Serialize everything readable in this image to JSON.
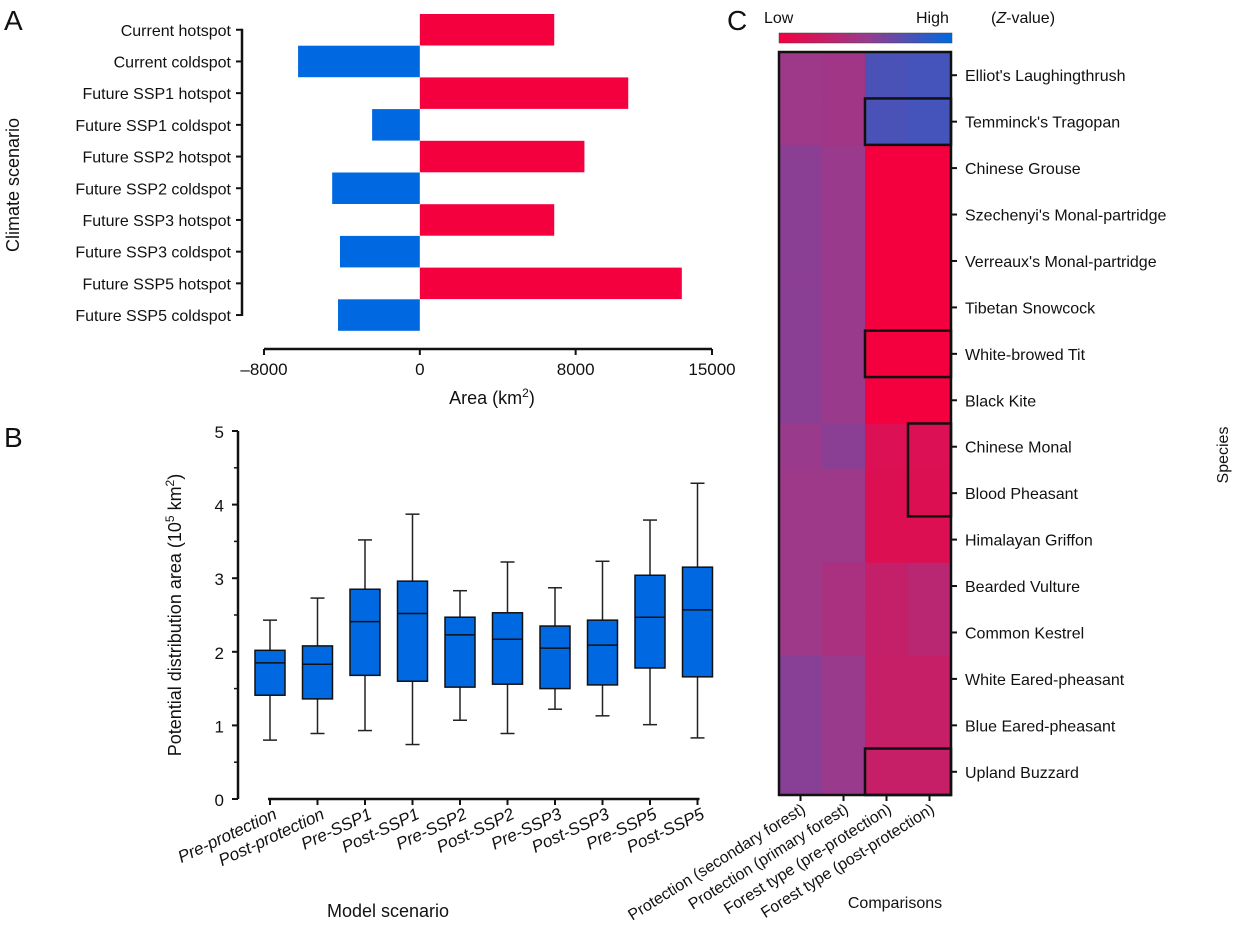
{
  "panels": {
    "a": "A",
    "b": "B",
    "c": "C"
  },
  "colors": {
    "hotspot": "#f5003f",
    "coldspot": "#0068e0",
    "box": "#0068e0",
    "low": "#f5003f",
    "mid": "#9a3a8c",
    "high": "#0068e0"
  },
  "chart_data": [
    {
      "type": "bar",
      "orientation": "horizontal",
      "panel": "A",
      "title": "",
      "xlabel": "Area (km²)",
      "xlabel_main": "Area (km",
      "xlabel_sup": "2",
      "xlabel_tail": ")",
      "ylabel": "Climate scenario",
      "xlim": [
        -8000,
        15000
      ],
      "xticks": [
        -8000,
        0,
        8000,
        15000
      ],
      "xtick_labels": [
        "–8000",
        "0",
        "8000",
        "15000"
      ],
      "categories": [
        "Current hotspot",
        "Current coldspot",
        "Future SSP1 hotspot",
        "Future SSP1 coldspot",
        "Future SSP2 hotspot",
        "Future SSP2 coldspot",
        "Future SSP3 hotspot",
        "Future SSP3 coldspot",
        "Future SSP5 hotspot",
        "Future SSP5 coldspot"
      ],
      "values": [
        6900,
        -6250,
        10700,
        -2450,
        8450,
        -4500,
        6900,
        -4100,
        13450,
        -4200
      ],
      "kinds": [
        "hotspot",
        "coldspot",
        "hotspot",
        "coldspot",
        "hotspot",
        "coldspot",
        "hotspot",
        "coldspot",
        "hotspot",
        "coldspot"
      ],
      "grid": false,
      "legend": "none"
    },
    {
      "type": "box",
      "panel": "B",
      "title": "",
      "xlabel": "Model scenario",
      "ylabel_main": "Potential distribution area (10",
      "ylabel_sup": "5",
      "ylabel_tail": " km",
      "ylabel_sup2": "2",
      "ylabel_end": ")",
      "ylim": [
        0,
        5
      ],
      "yticks": [
        0,
        1,
        2,
        3,
        4,
        5
      ],
      "categories": [
        "Pre-protection",
        "Post-protection",
        "Pre-SSP1",
        "Post-SSP1",
        "Pre-SSP2",
        "Post-SSP2",
        "Pre-SSP3",
        "Post-SSP3",
        "Pre-SSP5",
        "Post-SSP5"
      ],
      "series": [
        {
          "name": "Pre-protection",
          "min": 0.8,
          "q1": 1.41,
          "median": 1.85,
          "q3": 2.02,
          "max": 2.43
        },
        {
          "name": "Post-protection",
          "min": 0.89,
          "q1": 1.36,
          "median": 1.83,
          "q3": 2.08,
          "max": 2.73
        },
        {
          "name": "Pre-SSP1",
          "min": 0.93,
          "q1": 1.68,
          "median": 2.41,
          "q3": 2.85,
          "max": 3.52
        },
        {
          "name": "Post-SSP1",
          "min": 0.74,
          "q1": 1.6,
          "median": 2.52,
          "q3": 2.96,
          "max": 3.87
        },
        {
          "name": "Pre-SSP2",
          "min": 1.07,
          "q1": 1.52,
          "median": 2.23,
          "q3": 2.47,
          "max": 2.83
        },
        {
          "name": "Post-SSP2",
          "min": 0.89,
          "q1": 1.56,
          "median": 2.17,
          "q3": 2.53,
          "max": 3.22
        },
        {
          "name": "Pre-SSP3",
          "min": 1.22,
          "q1": 1.5,
          "median": 2.05,
          "q3": 2.35,
          "max": 2.87
        },
        {
          "name": "Post-SSP3",
          "min": 1.13,
          "q1": 1.55,
          "median": 2.09,
          "q3": 2.43,
          "max": 3.23
        },
        {
          "name": "Pre-SSP5",
          "min": 1.01,
          "q1": 1.78,
          "median": 2.47,
          "q3": 3.04,
          "max": 3.79
        },
        {
          "name": "Post-SSP5",
          "min": 0.83,
          "q1": 1.66,
          "median": 2.57,
          "q3": 3.15,
          "max": 4.29
        }
      ],
      "grid": false,
      "legend": "none"
    },
    {
      "type": "heatmap",
      "panel": "C",
      "title": "",
      "colorbar_low": "Low",
      "colorbar_high": "High",
      "colorbar_unit": "(Z-value)",
      "colorbar_unit_italic": "Z",
      "colorbar_unit_rest": "-value)",
      "xlabel": "Comparisons",
      "ylabel": "Species",
      "value_scale": [
        0,
        1
      ],
      "columns": [
        "Protection (secondary forest)",
        "Protection (primary forest)",
        "Forest type (pre-protection)",
        "Forest type (post-protection)"
      ],
      "rows": [
        "Elliot's Laughingthrush",
        "Temminck's Tragopan",
        "Chinese Grouse",
        "Szechenyi's Monal-partridge",
        "Verreaux's Monal-partridge",
        "Tibetan Snowcock",
        "White-browed Tit",
        "Black Kite",
        "Chinese Monal",
        "Blood Pheasant",
        "Himalayan Griffon",
        "Bearded Vulture",
        "Common Kestrel",
        "White Eared-pheasant",
        "Blue Eared-pheasant",
        "Upland Buzzard"
      ],
      "values": [
        [
          0.48,
          0.46,
          0.76,
          0.78
        ],
        [
          0.48,
          0.46,
          0.76,
          0.78
        ],
        [
          0.55,
          0.5,
          0.0,
          0.0
        ],
        [
          0.55,
          0.5,
          0.0,
          0.0
        ],
        [
          0.55,
          0.5,
          0.0,
          0.0
        ],
        [
          0.55,
          0.5,
          0.0,
          0.0
        ],
        [
          0.55,
          0.5,
          0.0,
          0.0
        ],
        [
          0.55,
          0.5,
          0.0,
          0.0
        ],
        [
          0.5,
          0.55,
          0.14,
          0.14
        ],
        [
          0.48,
          0.48,
          0.13,
          0.13
        ],
        [
          0.48,
          0.48,
          0.13,
          0.13
        ],
        [
          0.48,
          0.42,
          0.27,
          0.33
        ],
        [
          0.48,
          0.42,
          0.27,
          0.33
        ],
        [
          0.56,
          0.5,
          0.26,
          0.26
        ],
        [
          0.56,
          0.5,
          0.26,
          0.26
        ],
        [
          0.56,
          0.5,
          0.26,
          0.26
        ]
      ],
      "highlighted": [
        {
          "rows": [
            "Temminck's Tragopan"
          ],
          "columns": [
            "Forest type (pre-protection)",
            "Forest type (post-protection)"
          ]
        },
        {
          "rows": [
            "White-browed Tit"
          ],
          "columns": [
            "Forest type (pre-protection)",
            "Forest type (post-protection)"
          ]
        },
        {
          "rows": [
            "Chinese Monal",
            "Blood Pheasant"
          ],
          "columns": [
            "Forest type (post-protection)"
          ]
        },
        {
          "rows": [
            "Upland Buzzard"
          ],
          "columns": [
            "Forest type (pre-protection)",
            "Forest type (post-protection)"
          ]
        }
      ]
    }
  ]
}
